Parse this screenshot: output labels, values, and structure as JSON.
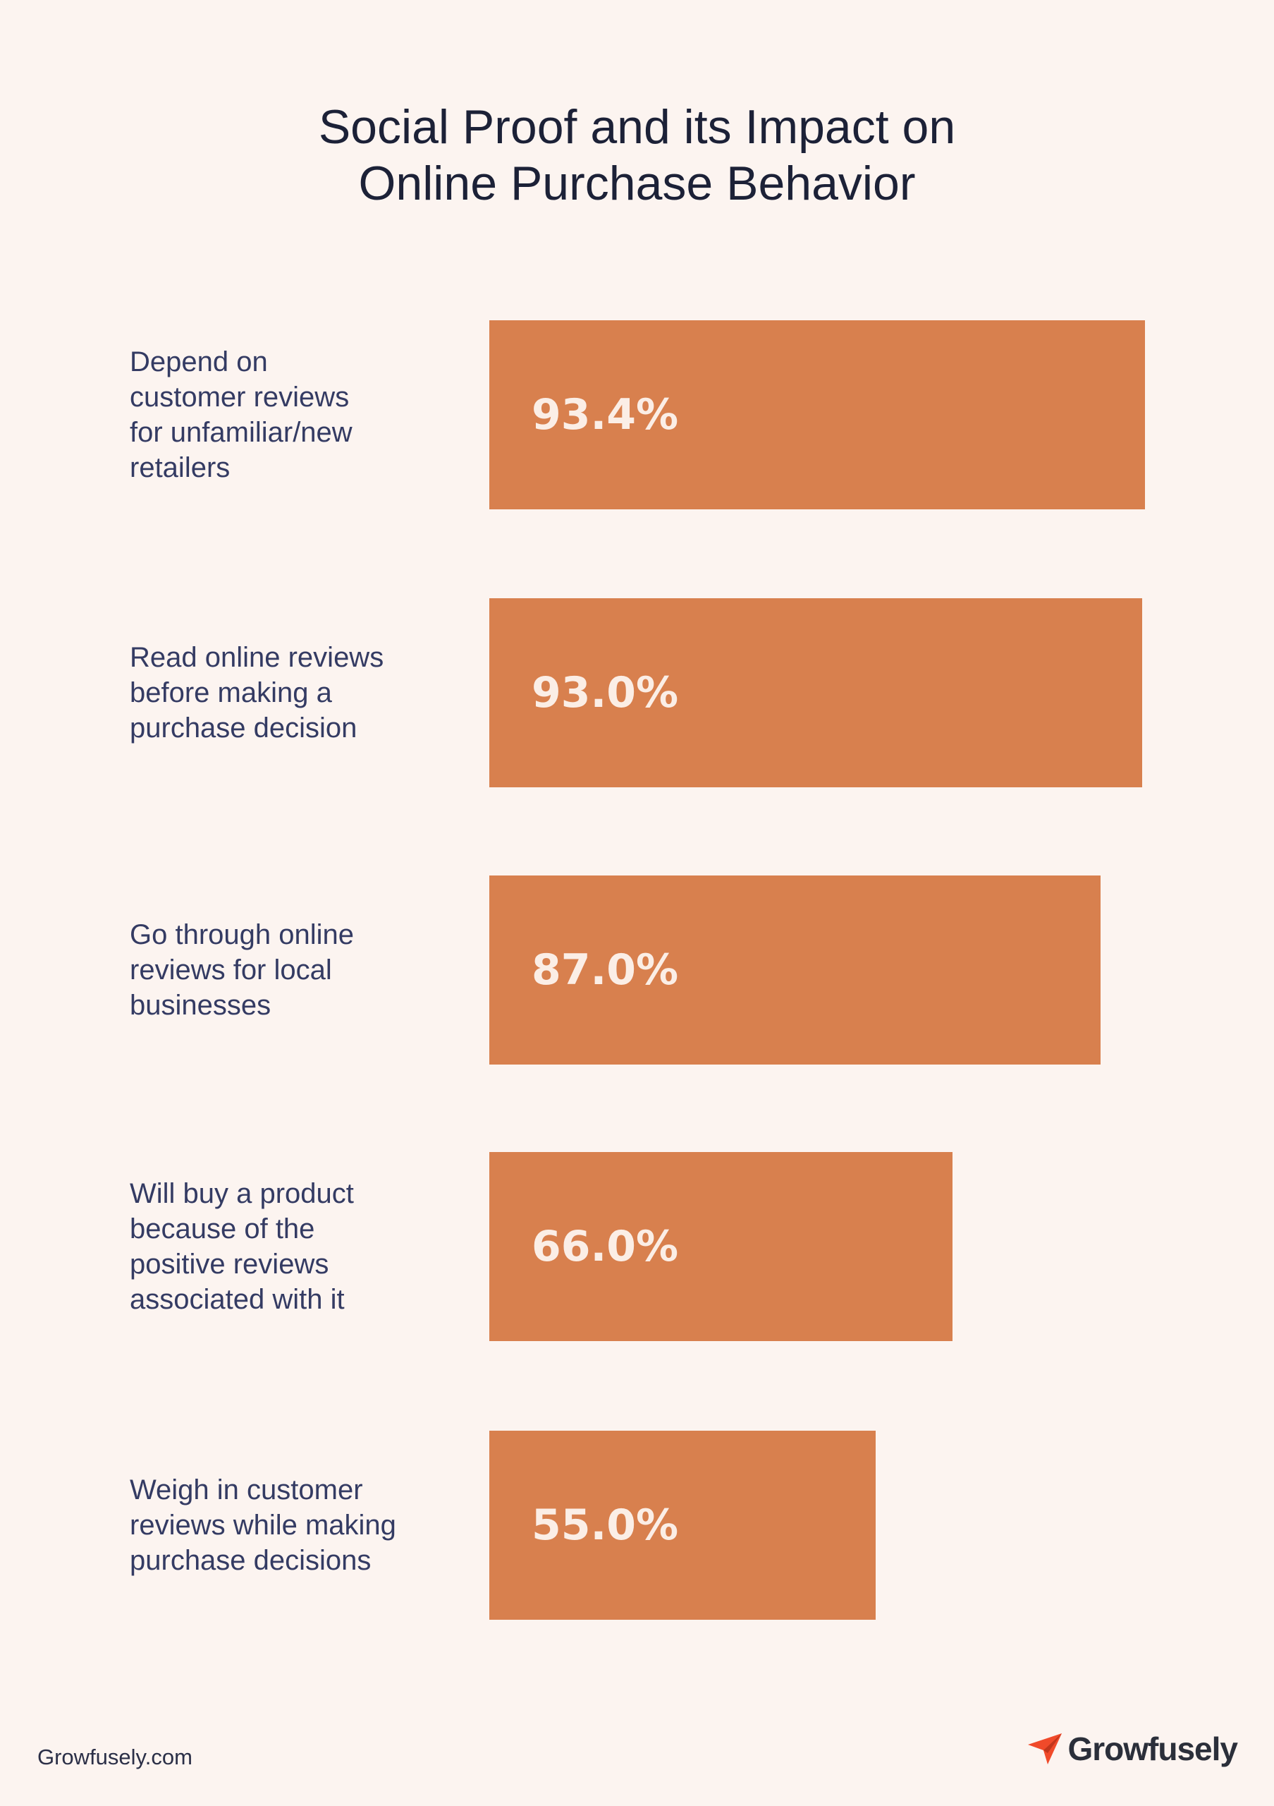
{
  "title_lines": [
    "Social Proof and its Impact on",
    "Online Purchase Behavior"
  ],
  "colors": {
    "background": "#fcf4f0",
    "bar": "#d8804e",
    "bar_text": "#fbeee6",
    "label_text": "#343b63",
    "title_text": "#1c2137",
    "logo_accent": "#f04a2a"
  },
  "chart_data": {
    "type": "bar",
    "orientation": "horizontal",
    "title": "Social Proof and its Impact on Online Purchase Behavior",
    "categories": [
      "Depend on customer reviews for unfamiliar/new retailers",
      "Read online reviews before making a purchase decision",
      "Go through online reviews for local businesses",
      "Will buy a product because of the positive reviews associated with it",
      "Weigh in customer reviews while making purchase decisions"
    ],
    "category_lines": [
      [
        "Depend on",
        "customer reviews",
        "for unfamiliar/new",
        "retailers"
      ],
      [
        "Read online reviews",
        "before making a",
        "purchase decision"
      ],
      [
        "Go through online",
        "reviews for local",
        "businesses"
      ],
      [
        "Will buy a product",
        "because of the",
        "positive reviews",
        "associated with it"
      ],
      [
        "Weigh in customer",
        "reviews while making",
        "purchase decisions"
      ]
    ],
    "values": [
      93.4,
      93.0,
      87.0,
      66.0,
      55.0
    ],
    "value_labels": [
      "93.4%",
      "93.0%",
      "87.0%",
      "66.0%",
      "55.0%"
    ],
    "xlim": [
      0,
      100
    ],
    "grid": false,
    "legend": "none"
  },
  "footer": {
    "url": "Growfusely.com",
    "logo_text": "Growfusely",
    "logo_icon": "paper-plane-icon"
  }
}
